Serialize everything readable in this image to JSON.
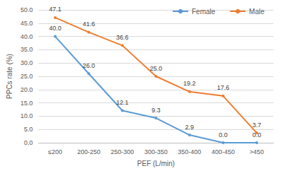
{
  "chart_data": {
    "type": "line",
    "x_label": "PEF (L/min)",
    "y_label": "PPCs rate (%)",
    "categories": [
      "≤200",
      "200-250",
      "250-300",
      "300-350",
      "350-400",
      "400-450",
      ">450"
    ],
    "series": [
      {
        "name": "Female",
        "color": "#5b9bd5",
        "marker": "circle",
        "values": [
          40.0,
          26.0,
          12.1,
          9.3,
          2.9,
          0.0,
          0.0
        ],
        "value_labels": [
          "40.0",
          "26.0",
          "12.1",
          "9.3",
          "2.9",
          "0.0",
          "0.0"
        ]
      },
      {
        "name": "Male",
        "color": "#ed7d31",
        "marker": "circle",
        "values": [
          47.1,
          41.6,
          36.6,
          25.0,
          19.2,
          17.6,
          3.7
        ],
        "value_labels": [
          "47.1",
          "41.6",
          "36.6",
          "25.0",
          "19.2",
          "17.6",
          "3.7"
        ]
      }
    ],
    "ylim": [
      0,
      50
    ],
    "yticks": [
      {
        "value": 0,
        "label": "0.0"
      },
      {
        "value": 5,
        "label": "5.0"
      },
      {
        "value": 10,
        "label": "10.0"
      },
      {
        "value": 15,
        "label": "15.0"
      },
      {
        "value": 20,
        "label": "20.0"
      },
      {
        "value": 25,
        "label": "25.0"
      },
      {
        "value": 30,
        "label": "30.0"
      },
      {
        "value": 35,
        "label": "35.0"
      },
      {
        "value": 40,
        "label": "40.0"
      },
      {
        "value": 45,
        "label": "45.0"
      },
      {
        "value": 50,
        "label": "50.0"
      }
    ],
    "grid": true,
    "legend": "upper right",
    "data_labels": true
  }
}
